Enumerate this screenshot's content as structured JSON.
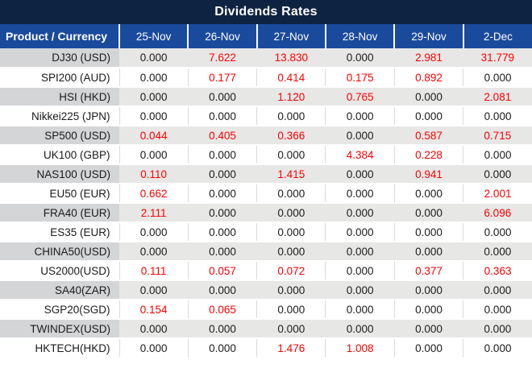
{
  "title": "Dividends Rates",
  "colors": {
    "title_bg": "#0e2342",
    "header_bg": "#1a4a9c",
    "row_alt_bg": "#e7e7e6",
    "row_alt_label_bg": "#d3d5d7",
    "value_red": "#fe0000",
    "text_dark": "#1a1a1a"
  },
  "table": {
    "product_column_header": "Product / Currency",
    "date_columns": [
      "25-Nov",
      "26-Nov",
      "27-Nov",
      "28-Nov",
      "29-Nov",
      "2-Dec"
    ],
    "value_color_rule": "non-zero values rendered red, zero values rendered black"
  },
  "chart_data": {
    "type": "table",
    "title": "Dividends Rates",
    "columns": [
      "Product / Currency",
      "25-Nov",
      "26-Nov",
      "27-Nov",
      "28-Nov",
      "29-Nov",
      "2-Dec"
    ],
    "rows": [
      {
        "product": "DJ30 (USD)",
        "values": [
          "0.000",
          "7.622",
          "13.830",
          "0.000",
          "2.981",
          "31.779"
        ]
      },
      {
        "product": "SPI200 (AUD)",
        "values": [
          "0.000",
          "0.177",
          "0.414",
          "0.175",
          "0.892",
          "0.000"
        ]
      },
      {
        "product": "HSI (HKD)",
        "values": [
          "0.000",
          "0.000",
          "1.120",
          "0.765",
          "0.000",
          "2.081"
        ]
      },
      {
        "product": "Nikkei225 (JPN)",
        "values": [
          "0.000",
          "0.000",
          "0.000",
          "0.000",
          "0.000",
          "0.000"
        ]
      },
      {
        "product": "SP500 (USD)",
        "values": [
          "0.044",
          "0.405",
          "0.366",
          "0.000",
          "0.587",
          "0.715"
        ]
      },
      {
        "product": "UK100 (GBP)",
        "values": [
          "0.000",
          "0.000",
          "0.000",
          "4.384",
          "0.228",
          "0.000"
        ]
      },
      {
        "product": "NAS100 (USD)",
        "values": [
          "0.110",
          "0.000",
          "1.415",
          "0.000",
          "0.941",
          "0.000"
        ]
      },
      {
        "product": "EU50 (EUR)",
        "values": [
          "0.662",
          "0.000",
          "0.000",
          "0.000",
          "0.000",
          "2.001"
        ]
      },
      {
        "product": "FRA40 (EUR)",
        "values": [
          "2.111",
          "0.000",
          "0.000",
          "0.000",
          "0.000",
          "6.096"
        ]
      },
      {
        "product": "ES35 (EUR)",
        "values": [
          "0.000",
          "0.000",
          "0.000",
          "0.000",
          "0.000",
          "0.000"
        ]
      },
      {
        "product": "CHINA50(USD)",
        "values": [
          "0.000",
          "0.000",
          "0.000",
          "0.000",
          "0.000",
          "0.000"
        ]
      },
      {
        "product": "US2000(USD)",
        "values": [
          "0.111",
          "0.057",
          "0.072",
          "0.000",
          "0.377",
          "0.363"
        ]
      },
      {
        "product": "SA40(ZAR)",
        "values": [
          "0.000",
          "0.000",
          "0.000",
          "0.000",
          "0.000",
          "0.000"
        ]
      },
      {
        "product": "SGP20(SGD)",
        "values": [
          "0.154",
          "0.065",
          "0.000",
          "0.000",
          "0.000",
          "0.000"
        ]
      },
      {
        "product": "TWINDEX(USD)",
        "values": [
          "0.000",
          "0.000",
          "0.000",
          "0.000",
          "0.000",
          "0.000"
        ]
      },
      {
        "product": "HKTECH(HKD)",
        "values": [
          "0.000",
          "0.000",
          "1.476",
          "1.008",
          "0.000",
          "0.000"
        ]
      }
    ]
  }
}
